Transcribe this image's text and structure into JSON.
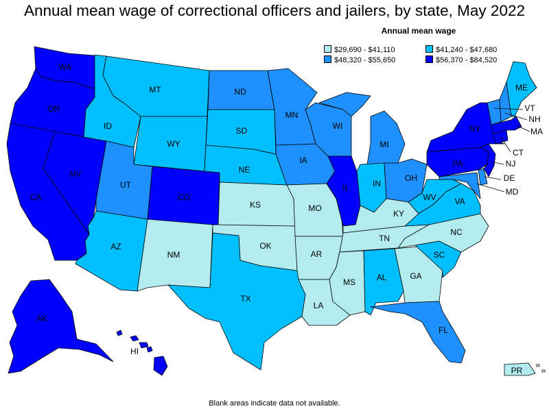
{
  "title": "Annual mean wage of correctional officers and jailers, by state, May 2022",
  "legend": {
    "title": "Annual mean wage",
    "bins": [
      {
        "label": "$29,690 - $41,110",
        "color": "#b2ecee"
      },
      {
        "label": "$41,240 - $47,680",
        "color": "#00bfff"
      },
      {
        "label": "$48,320 - $55,650",
        "color": "#1e90ff"
      },
      {
        "label": "$56,370 - $84,520",
        "color": "#0000ff"
      }
    ]
  },
  "footnote": "Blank areas indicate data not available.",
  "states": [
    {
      "abbr": "WA",
      "bin": 3
    },
    {
      "abbr": "OR",
      "bin": 3
    },
    {
      "abbr": "CA",
      "bin": 3
    },
    {
      "abbr": "NV",
      "bin": 3
    },
    {
      "abbr": "ID",
      "bin": 1
    },
    {
      "abbr": "MT",
      "bin": 1
    },
    {
      "abbr": "WY",
      "bin": 1
    },
    {
      "abbr": "UT",
      "bin": 2
    },
    {
      "abbr": "AZ",
      "bin": 1
    },
    {
      "abbr": "CO",
      "bin": 3
    },
    {
      "abbr": "NM",
      "bin": 0
    },
    {
      "abbr": "ND",
      "bin": 2
    },
    {
      "abbr": "SD",
      "bin": 1
    },
    {
      "abbr": "NE",
      "bin": 1
    },
    {
      "abbr": "KS",
      "bin": 0
    },
    {
      "abbr": "OK",
      "bin": 0
    },
    {
      "abbr": "TX",
      "bin": 1
    },
    {
      "abbr": "MN",
      "bin": 2
    },
    {
      "abbr": "IA",
      "bin": 2
    },
    {
      "abbr": "MO",
      "bin": 0
    },
    {
      "abbr": "AR",
      "bin": 0
    },
    {
      "abbr": "LA",
      "bin": 0
    },
    {
      "abbr": "WI",
      "bin": 2
    },
    {
      "abbr": "IL",
      "bin": 3
    },
    {
      "abbr": "MI",
      "bin": 2
    },
    {
      "abbr": "IN",
      "bin": 1
    },
    {
      "abbr": "OH",
      "bin": 2
    },
    {
      "abbr": "KY",
      "bin": 0
    },
    {
      "abbr": "TN",
      "bin": 0
    },
    {
      "abbr": "MS",
      "bin": 0
    },
    {
      "abbr": "AL",
      "bin": 1
    },
    {
      "abbr": "GA",
      "bin": 0
    },
    {
      "abbr": "FL",
      "bin": 2
    },
    {
      "abbr": "SC",
      "bin": 1
    },
    {
      "abbr": "NC",
      "bin": 0
    },
    {
      "abbr": "VA",
      "bin": 1
    },
    {
      "abbr": "WV",
      "bin": 1
    },
    {
      "abbr": "MD",
      "bin": 2
    },
    {
      "abbr": "DE",
      "bin": 2
    },
    {
      "abbr": "PA",
      "bin": 3
    },
    {
      "abbr": "NJ",
      "bin": 3
    },
    {
      "abbr": "NY",
      "bin": 3
    },
    {
      "abbr": "CT",
      "bin": 3
    },
    {
      "abbr": "MA",
      "bin": 3
    },
    {
      "abbr": "VT",
      "bin": 2
    },
    {
      "abbr": "NH",
      "bin": 2
    },
    {
      "abbr": "ME",
      "bin": 1
    },
    {
      "abbr": "AK",
      "bin": 3
    },
    {
      "abbr": "HI",
      "bin": 3
    },
    {
      "abbr": "PR",
      "bin": 0
    }
  ]
}
